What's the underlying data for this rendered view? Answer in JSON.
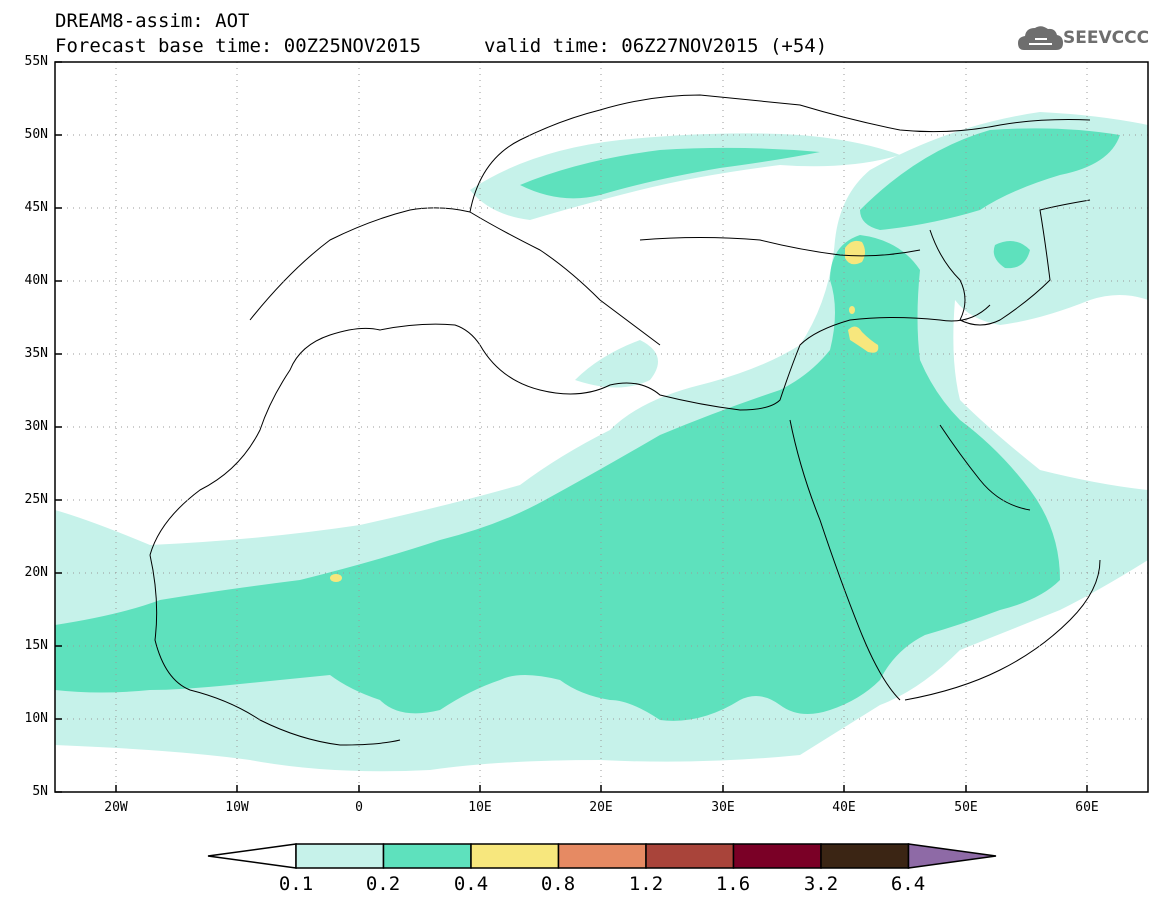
{
  "header": {
    "title": "DREAM8-assim: AOT",
    "base_time": "Forecast base time: 00Z25NOV2015",
    "valid_time": "valid time: 06Z27NOV2015 (+54)"
  },
  "logo": {
    "text": "SEEVCCC",
    "icon": "cloud-icon"
  },
  "map": {
    "lat_labels": [
      "55N",
      "50N",
      "45N",
      "40N",
      "35N",
      "30N",
      "25N",
      "20N",
      "15N",
      "10N",
      "5N"
    ],
    "lon_labels": [
      "20W",
      "10W",
      "0",
      "10E",
      "20E",
      "30E",
      "40E",
      "50E",
      "60E"
    ],
    "grid": true,
    "extent": {
      "lon": [
        -25,
        65
      ],
      "lat": [
        5,
        55
      ]
    }
  },
  "colorbar": {
    "labels": [
      "0.1",
      "0.2",
      "0.4",
      "0.8",
      "1.2",
      "1.6",
      "3.2",
      "6.4"
    ],
    "colors": [
      "#ffffff",
      "#c6f2ea",
      "#5ee1bd",
      "#f7e77d",
      "#e68a63",
      "#a9443a",
      "#7a0026",
      "#3b2514",
      "#8e6aa6"
    ]
  }
}
